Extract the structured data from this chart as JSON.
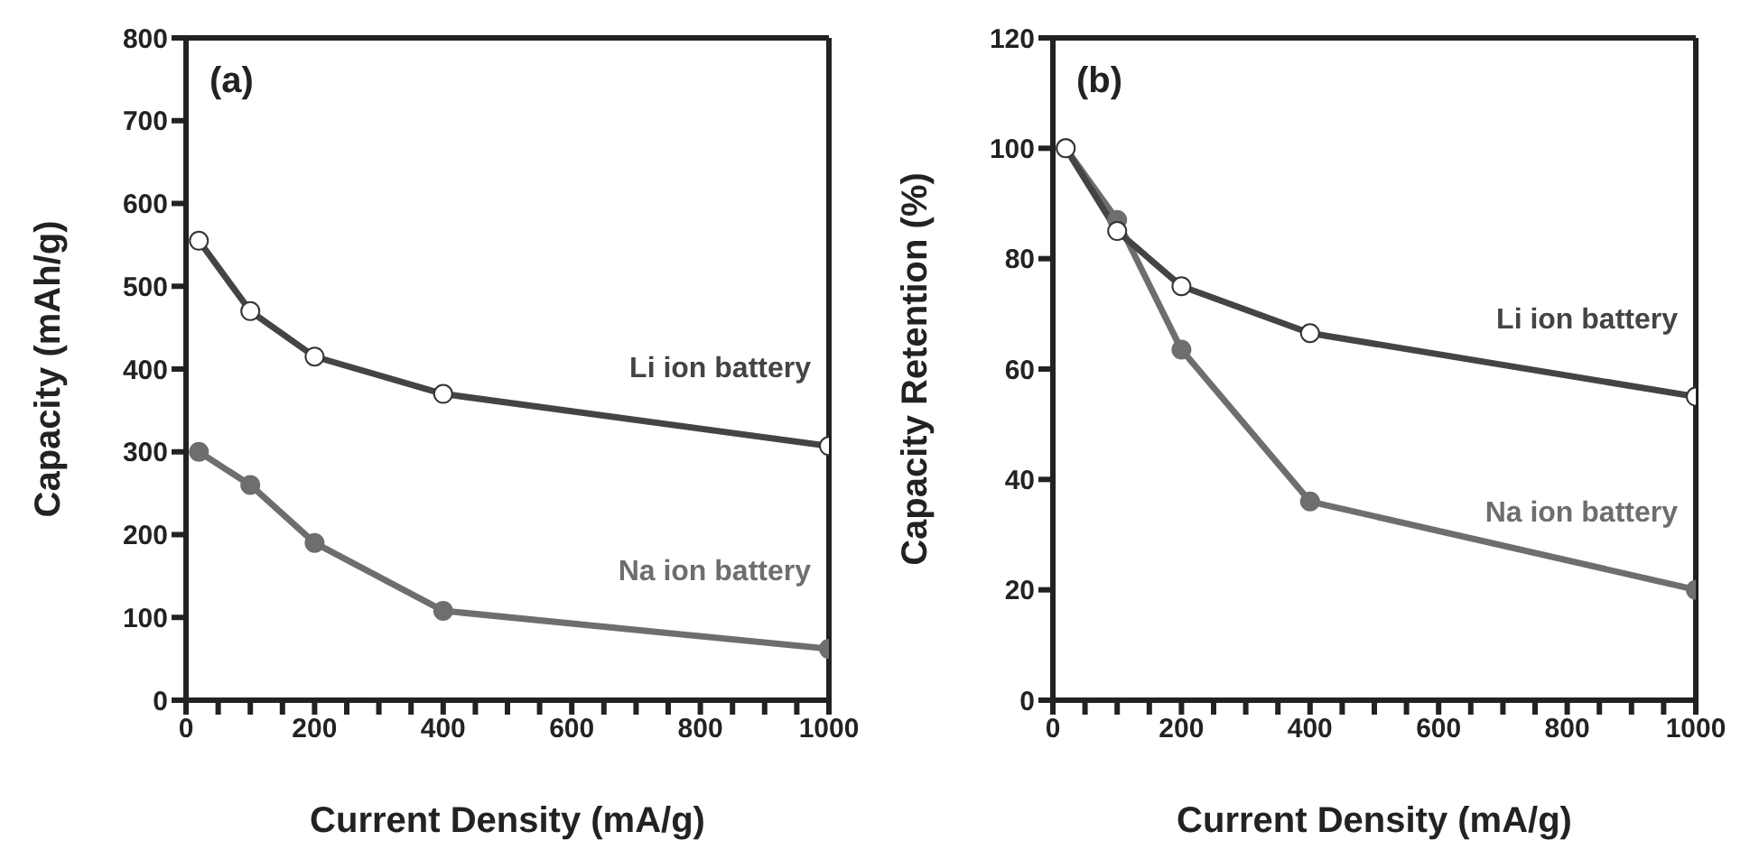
{
  "chart_data": [
    {
      "type": "line",
      "title": "(a)",
      "xlabel": "Current Density (mA/g)",
      "ylabel": "Capacity (mAh/g)",
      "x": [
        20,
        100,
        200,
        400,
        1000
      ],
      "xlim": [
        0,
        1000
      ],
      "xticks": [
        0,
        {
          "value": 50,
          "label": null
        },
        {
          "value": 100,
          "label": null
        },
        {
          "value": 150,
          "label": null
        },
        200,
        {
          "value": 250,
          "label": null
        },
        {
          "value": 300,
          "label": null
        },
        {
          "value": 350,
          "label": null
        },
        400,
        {
          "value": 450,
          "label": null
        },
        {
          "value": 500,
          "label": null
        },
        {
          "value": 550,
          "label": null
        },
        600,
        {
          "value": 650,
          "label": null
        },
        {
          "value": 700,
          "label": null
        },
        {
          "value": 750,
          "label": null
        },
        800,
        {
          "value": 850,
          "label": null
        },
        {
          "value": 900,
          "label": null
        },
        {
          "value": 950,
          "label": null
        },
        1000
      ],
      "ylim": [
        0,
        800
      ],
      "yticks": [
        0,
        100,
        200,
        300,
        400,
        500,
        600,
        700,
        800
      ],
      "grid": false,
      "legend": false,
      "marker": "circle",
      "line_style": "solid",
      "series": [
        {
          "name": "Li ion battery",
          "color": "#444444",
          "values": [
            555,
            470,
            415,
            370,
            307
          ]
        },
        {
          "name": "Na ion battery",
          "color": "#6e6e6e",
          "values": [
            300,
            260,
            190,
            108,
            62
          ]
        }
      ]
    },
    {
      "type": "line",
      "title": "(b)",
      "xlabel": "Current Density (mA/g)",
      "ylabel": "Capacity Retention (%)",
      "x": [
        20,
        100,
        200,
        400,
        1000
      ],
      "xlim": [
        0,
        1000
      ],
      "xticks": [
        0,
        {
          "value": 50,
          "label": null
        },
        {
          "value": 100,
          "label": null
        },
        {
          "value": 150,
          "label": null
        },
        200,
        {
          "value": 250,
          "label": null
        },
        {
          "value": 300,
          "label": null
        },
        {
          "value": 350,
          "label": null
        },
        400,
        {
          "value": 450,
          "label": null
        },
        {
          "value": 500,
          "label": null
        },
        {
          "value": 550,
          "label": null
        },
        600,
        {
          "value": 650,
          "label": null
        },
        {
          "value": 700,
          "label": null
        },
        {
          "value": 750,
          "label": null
        },
        800,
        {
          "value": 850,
          "label": null
        },
        {
          "value": 900,
          "label": null
        },
        {
          "value": 950,
          "label": null
        },
        1000
      ],
      "ylim": [
        0,
        120
      ],
      "yticks": [
        0,
        20,
        40,
        60,
        80,
        100,
        120
      ],
      "grid": false,
      "legend": false,
      "marker": "circle",
      "line_style": "solid",
      "series": [
        {
          "name": "Li ion battery",
          "color": "#444444",
          "values": [
            100,
            85,
            75,
            66.5,
            55
          ]
        },
        {
          "name": "Na ion battery",
          "color": "#6e6e6e",
          "values": [
            100,
            87,
            63.5,
            36,
            20
          ]
        }
      ]
    }
  ]
}
